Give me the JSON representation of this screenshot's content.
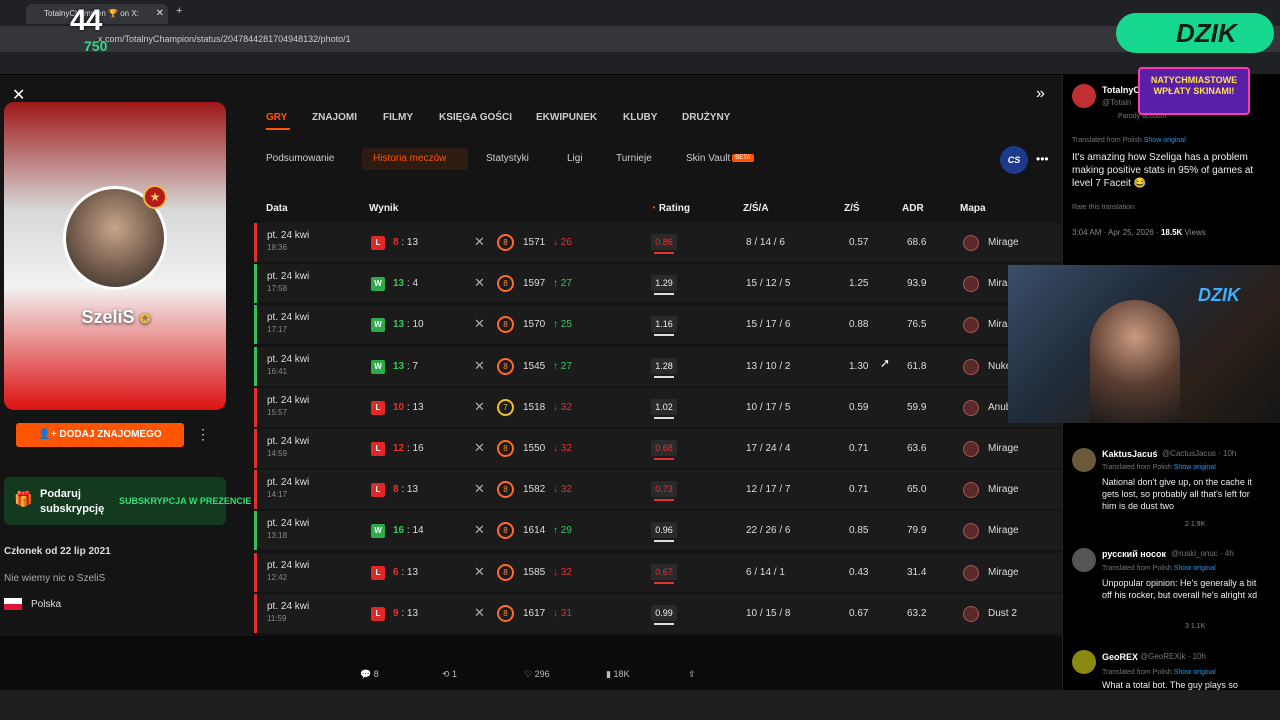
{
  "browser": {
    "tab_title": "TotalnyChampion 🏆 on X:",
    "url": "x.com/TotalnyChampion/status/2047844281704948132/photo/1"
  },
  "stream": {
    "logo_number": "44",
    "logo_sub": "750",
    "brand": "DZIK",
    "promo_line1": "NATYCHMIASTOWE",
    "promo_line2": "WPŁATY SKINAMI!",
    "cam_brand": "DZIK"
  },
  "profile": {
    "name": "SzeliS",
    "add_friend": "DODAJ ZNAJOMEGO",
    "gift_title": "Podaruj subskrypcję",
    "gift_button": "SUBSKRYPCJA W PREZENCIE",
    "member_since": "Członek od 22 lip 2021",
    "description": "Nie wiemy nic o SzeliS",
    "country": "Polska"
  },
  "nav": {
    "tabs": [
      "GRY",
      "ZNAJOMI",
      "FILMY",
      "KSIĘGA GOŚCI",
      "EKWIPUNEK",
      "KLUBY",
      "DRUŻYNY"
    ],
    "subtabs": [
      "Podsumowanie",
      "Historia meczów",
      "Statystyki",
      "Ligi",
      "Turnieje",
      "Skin Vault"
    ],
    "beta": "BETA",
    "game_badge": "CS"
  },
  "table": {
    "headers": {
      "date": "Data",
      "result": "Wynik",
      "rating": "Rating",
      "kda": "Z/Ś/A",
      "kd": "Z/Ś",
      "adr": "ADR",
      "map": "Mapa"
    },
    "rows": [
      {
        "date": "pt. 24 kwi",
        "time": "18:36",
        "res": "L",
        "a": "8",
        "b": "13",
        "lvl": "8",
        "elo": "1571",
        "delta": "↓ 26",
        "dir": "dn",
        "rating": "0.86",
        "kda": "8 / 14 / 6",
        "kd": "0.57",
        "adr": "68.6",
        "map": "Mirage"
      },
      {
        "date": "pt. 24 kwi",
        "time": "17:58",
        "res": "W",
        "a": "13",
        "b": "4",
        "lvl": "8",
        "elo": "1597",
        "delta": "↑ 27",
        "dir": "up",
        "rating": "1.29",
        "kda": "15 / 12 / 5",
        "kd": "1.25",
        "adr": "93.9",
        "map": "Mirage"
      },
      {
        "date": "pt. 24 kwi",
        "time": "17:17",
        "res": "W",
        "a": "13",
        "b": "10",
        "lvl": "8",
        "elo": "1570",
        "delta": "↑ 25",
        "dir": "up",
        "rating": "1.16",
        "kda": "15 / 17 / 6",
        "kd": "0.88",
        "adr": "76.5",
        "map": "Mirage"
      },
      {
        "date": "pt. 24 kwi",
        "time": "16:41",
        "res": "W",
        "a": "13",
        "b": "7",
        "lvl": "8",
        "elo": "1545",
        "delta": "↑ 27",
        "dir": "up",
        "rating": "1.28",
        "kda": "13 / 10 / 2",
        "kd": "1.30",
        "adr": "61.8",
        "map": "Nuke"
      },
      {
        "date": "pt. 24 kwi",
        "time": "15:57",
        "res": "L",
        "a": "10",
        "b": "13",
        "lvl": "7",
        "elo": "1518",
        "delta": "↓ 32",
        "dir": "dn",
        "rating": "1.02",
        "kda": "10 / 17 / 5",
        "kd": "0.59",
        "adr": "59.9",
        "map": "Anubis"
      },
      {
        "date": "pt. 24 kwi",
        "time": "14:59",
        "res": "L",
        "a": "12",
        "b": "16",
        "lvl": "8",
        "elo": "1550",
        "delta": "↓ 32",
        "dir": "dn",
        "rating": "0.68",
        "kda": "17 / 24 / 4",
        "kd": "0.71",
        "adr": "63.6",
        "map": "Mirage"
      },
      {
        "date": "pt. 24 kwi",
        "time": "14:17",
        "res": "L",
        "a": "8",
        "b": "13",
        "lvl": "8",
        "elo": "1582",
        "delta": "↓ 32",
        "dir": "dn",
        "rating": "0.73",
        "kda": "12 / 17 / 7",
        "kd": "0.71",
        "adr": "65.0",
        "map": "Mirage"
      },
      {
        "date": "pt. 24 kwi",
        "time": "13:18",
        "res": "W",
        "a": "16",
        "b": "14",
        "lvl": "8",
        "elo": "1614",
        "delta": "↑ 29",
        "dir": "up",
        "rating": "0.96",
        "kda": "22 / 26 / 6",
        "kd": "0.85",
        "adr": "79.9",
        "map": "Mirage"
      },
      {
        "date": "pt. 24 kwi",
        "time": "12:42",
        "res": "L",
        "a": "6",
        "b": "13",
        "lvl": "8",
        "elo": "1585",
        "delta": "↓ 32",
        "dir": "dn",
        "rating": "0.67",
        "kda": "6 / 14 / 1",
        "kd": "0.43",
        "adr": "31.4",
        "map": "Mirage"
      },
      {
        "date": "pt. 24 kwi",
        "time": "11:59",
        "res": "L",
        "a": "9",
        "b": "13",
        "lvl": "8",
        "elo": "1617",
        "delta": "↓ 31",
        "dir": "dn",
        "rating": "0.99",
        "kda": "10 / 15 / 8",
        "kd": "0.67",
        "adr": "63.2",
        "map": "Dust 2"
      }
    ]
  },
  "tweet_actions": {
    "replies": "8",
    "retweets": "1",
    "likes": "296",
    "views": "18K"
  },
  "twitter": {
    "author_name": "TotalnyC",
    "author_handle": "@Totaln",
    "parody": "Parody account",
    "translated": "Translated from Polish",
    "show_original": "Show original",
    "main_text": "It's amazing how Szeliga has a problem making positive stats in 95% of games at level 7 Faceit 😂",
    "rate": "Rate this translation:",
    "meta_time": "3:04 AM · Apr 25, 2026 · ",
    "meta_views": "18.5K",
    "meta_views_label": " Views",
    "replies": [
      {
        "name": "KaktusJacuś",
        "handle": "@CactusJacus · 10h",
        "text": "National don't give up, on the cache it gets lost, so probably all that's left for him is de dust two",
        "stats": "2    1.9K"
      },
      {
        "name": "русский носок",
        "handle": "@ruski_onuc · 4h",
        "text": "Unpopular opinion: He's generally a bit off his rocker, but overall he's alright xd",
        "stats": "3    1.1K"
      },
      {
        "name": "GeoREX",
        "handle": "@GeoREXik · 10h",
        "text": "What a total bot. The guy plays so",
        "stats": ""
      }
    ]
  },
  "colors": {
    "accent": "#ff5500",
    "win": "#2dab4b",
    "loss": "#e02828"
  }
}
